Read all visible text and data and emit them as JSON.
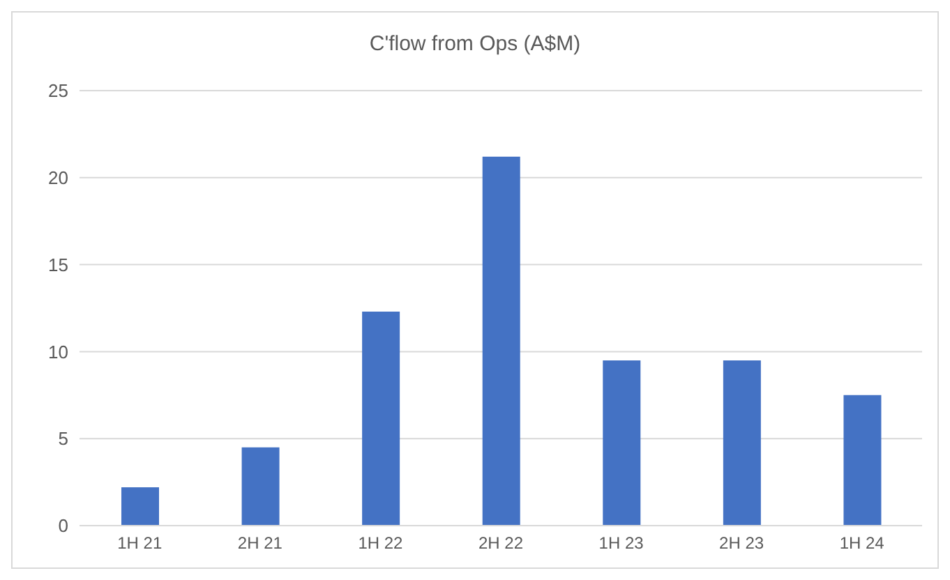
{
  "chart_data": {
    "type": "bar",
    "title": "C'flow from Ops (A$M)",
    "categories": [
      "1H 21",
      "2H 21",
      "1H 22",
      "2H 22",
      "1H 23",
      "2H 23",
      "1H 24"
    ],
    "values": [
      2.2,
      4.5,
      12.3,
      21.2,
      9.5,
      9.5,
      7.5
    ],
    "color": "#4472c4",
    "ylim": [
      0,
      25
    ],
    "yticks": [
      0,
      5,
      10,
      15,
      20,
      25
    ],
    "grid": "y"
  }
}
